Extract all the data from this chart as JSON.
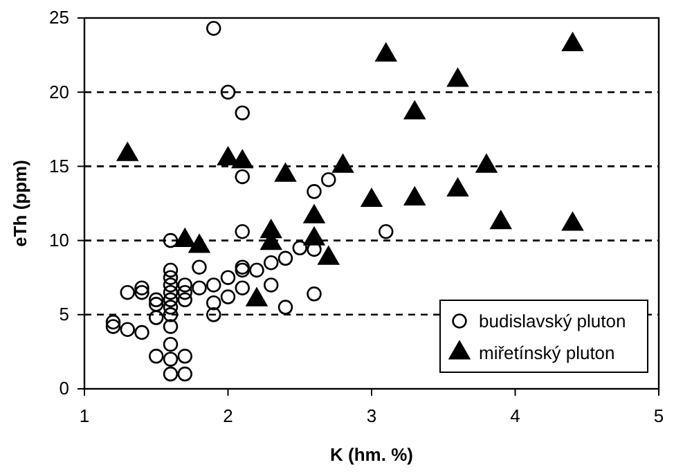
{
  "chart_data": {
    "type": "scatter",
    "xlabel": "K (hm. %)",
    "ylabel": "eTh (ppm)",
    "xlim": [
      1,
      5
    ],
    "xticks": [
      1,
      2,
      3,
      4,
      5
    ],
    "ylim": [
      0,
      25
    ],
    "yticks": [
      0,
      5,
      10,
      15,
      20,
      25
    ],
    "grid": "y",
    "legend": "bottom right",
    "series": [
      {
        "name": "budislavský pluton",
        "color": "#000000",
        "marker": "circle",
        "x": [
          1.2,
          1.2,
          1.3,
          1.3,
          1.4,
          1.4,
          1.4,
          1.5,
          1.5,
          1.5,
          1.5,
          1.6,
          1.6,
          1.6,
          1.6,
          1.6,
          1.6,
          1.6,
          1.6,
          1.6,
          1.6,
          1.6,
          1.6,
          1.7,
          1.7,
          1.7,
          1.7,
          1.7,
          1.8,
          1.8,
          1.9,
          1.9,
          1.9,
          2.0,
          2.0,
          2.1,
          2.1,
          2.1,
          2.1,
          2.2,
          2.3,
          2.3,
          2.4,
          2.4,
          2.5,
          2.6,
          2.6,
          1.9,
          2.0,
          2.1,
          2.1,
          2.6,
          2.7,
          3.1
        ],
        "values": [
          4.5,
          4.2,
          6.5,
          4,
          6.8,
          6.5,
          3.8,
          6,
          5.7,
          4.8,
          2.2,
          10,
          8,
          7.5,
          7,
          6.5,
          6,
          5.5,
          5,
          4.2,
          3,
          2,
          1,
          7,
          6.5,
          6,
          2.2,
          1,
          6.8,
          8.2,
          7,
          5,
          5.8,
          7.5,
          6.2,
          8.2,
          8,
          10.6,
          6.8,
          8,
          8.5,
          7,
          8.8,
          5.5,
          9.5,
          6.4,
          9.4,
          24.3,
          20,
          18.6,
          14.3,
          13.3,
          14.1,
          10.6
        ]
      },
      {
        "name": "miřetínský pluton",
        "color": "#000000",
        "marker": "triangle",
        "x": [
          1.3,
          1.7,
          1.8,
          2.0,
          2.1,
          2.2,
          2.3,
          2.3,
          2.4,
          2.6,
          2.6,
          2.7,
          2.8,
          3.0,
          3.1,
          3.3,
          3.3,
          3.6,
          3.6,
          3.8,
          3.9,
          4.4,
          4.4
        ],
        "values": [
          15.8,
          10,
          9.6,
          15.5,
          15.3,
          6,
          10.6,
          9.8,
          14.4,
          11.6,
          10.1,
          8.8,
          15,
          12.7,
          22.5,
          12.8,
          18.6,
          13.4,
          20.8,
          15,
          11.2,
          11.1,
          23.2
        ]
      }
    ]
  }
}
